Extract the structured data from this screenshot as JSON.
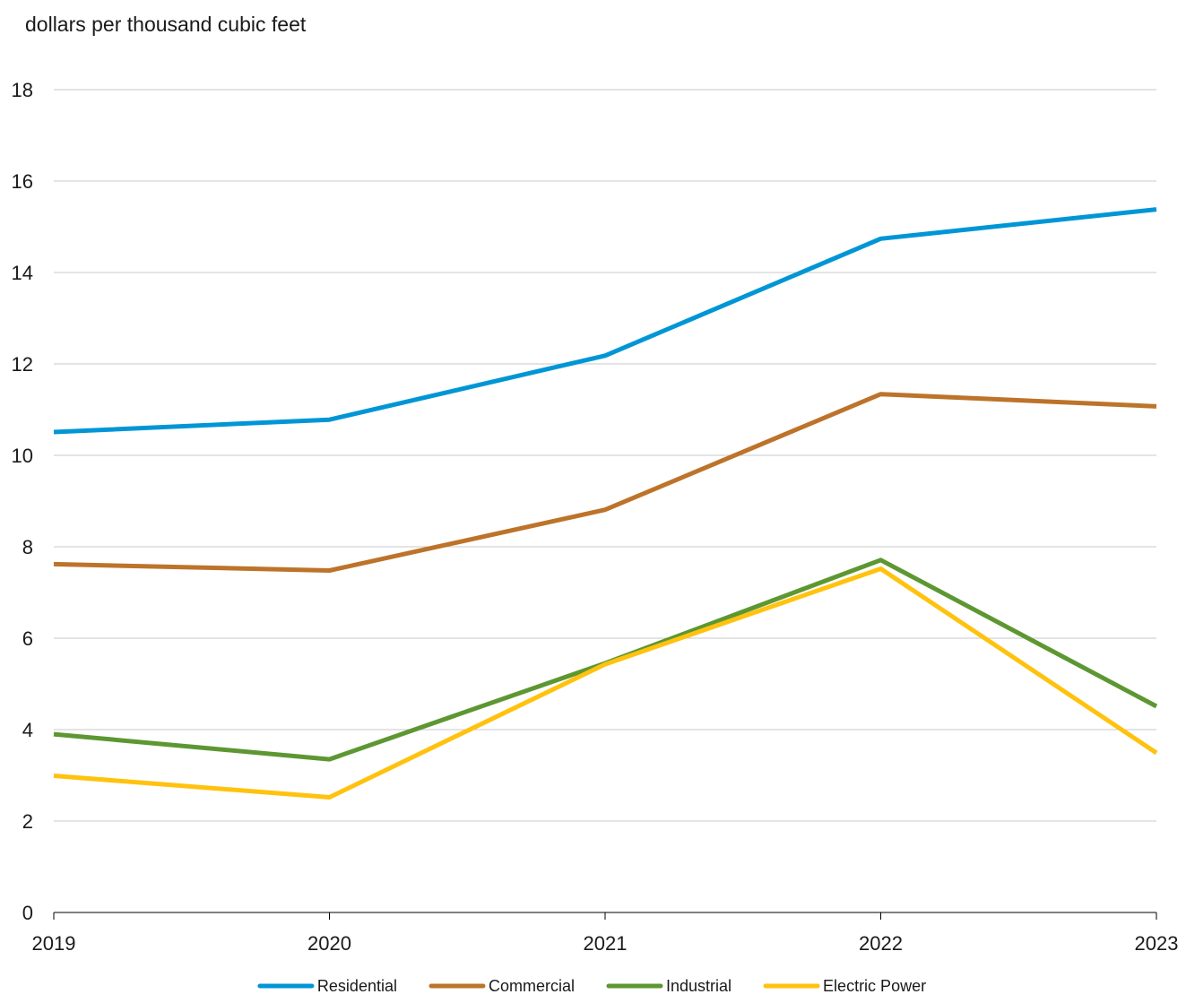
{
  "chart_data": {
    "type": "line",
    "ylabel": "dollars per thousand cubic feet",
    "x": [
      "2019",
      "2020",
      "2021",
      "2022",
      "2023"
    ],
    "ylim": [
      0,
      18
    ],
    "yticks": [
      "0",
      "2",
      "4",
      "6",
      "8",
      "10",
      "12",
      "14",
      "16",
      "18"
    ],
    "grid": true,
    "legend_position": "bottom",
    "series": [
      {
        "name": "Residential",
        "color": "#0096d6",
        "values": [
          10.51,
          10.78,
          12.18,
          14.74,
          15.38
        ]
      },
      {
        "name": "Commercial",
        "color": "#bd732a",
        "values": [
          7.62,
          7.48,
          8.81,
          11.34,
          11.07
        ]
      },
      {
        "name": "Industrial",
        "color": "#5d9732",
        "values": [
          3.9,
          3.35,
          5.45,
          7.71,
          4.51
        ]
      },
      {
        "name": "Electric Power",
        "color": "#ffc20e",
        "values": [
          2.99,
          2.52,
          5.43,
          7.52,
          3.49
        ]
      }
    ]
  }
}
